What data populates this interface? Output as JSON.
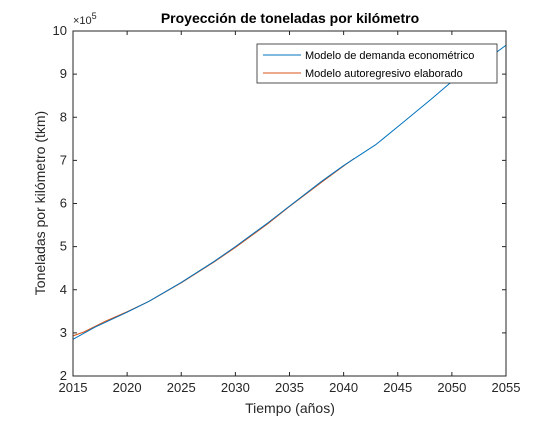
{
  "chart_data": {
    "type": "line",
    "title": "Proyección de toneladas por kilómetro",
    "xlabel": "Tiempo (años)",
    "ylabel": "Toneladas por kilómetro (tkm)",
    "xlim": [
      2015,
      2055
    ],
    "ylim": [
      2,
      10
    ],
    "y_exponent_label": "×10",
    "y_exponent_power": "5",
    "y_multiplier": 100000,
    "x_ticks": [
      2015,
      2020,
      2025,
      2030,
      2035,
      2040,
      2045,
      2050,
      2055
    ],
    "y_ticks": [
      2,
      3,
      4,
      5,
      6,
      7,
      8,
      9,
      10
    ],
    "grid": false,
    "legend_position": "top-right",
    "series": [
      {
        "name": "Modelo de demanda econométrico",
        "color": "#0072BD",
        "x": [
          2015,
          2017,
          2020,
          2022,
          2025,
          2028,
          2030,
          2033,
          2035,
          2038,
          2040,
          2043,
          2045,
          2048,
          2050,
          2053,
          2055
        ],
        "y": [
          2.85,
          3.13,
          3.48,
          3.73,
          4.17,
          4.65,
          5.0,
          5.55,
          5.94,
          6.52,
          6.88,
          7.37,
          7.78,
          8.4,
          8.83,
          9.3,
          9.67
        ]
      },
      {
        "name": "Modelo autoregresivo elaborado",
        "color": "#D95319",
        "x": [
          2015,
          2016,
          2018,
          2020,
          2022,
          2025,
          2028,
          2030,
          2033,
          2035,
          2038,
          2040,
          2041
        ],
        "y": [
          2.93,
          3.02,
          3.27,
          3.49,
          3.73,
          4.16,
          4.64,
          4.98,
          5.53,
          5.93,
          6.5,
          6.87,
          7.05
        ]
      }
    ]
  }
}
